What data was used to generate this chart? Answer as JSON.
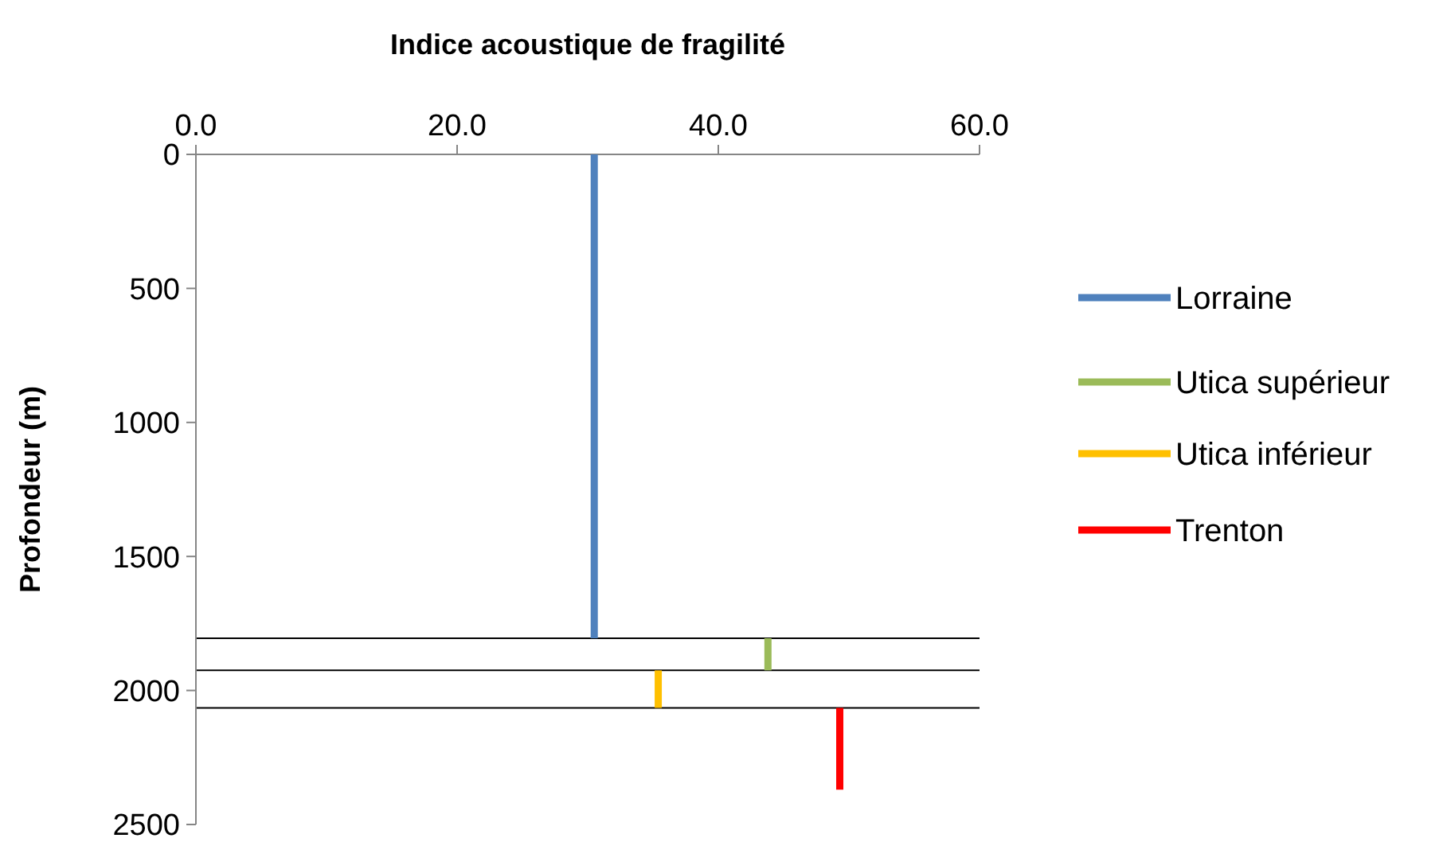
{
  "chart_data": {
    "type": "line",
    "xlabel": "Indice acoustique de fragilité",
    "ylabel": "Profondeur (m)",
    "xlim": [
      0,
      60
    ],
    "xticks": [
      {
        "value": 0,
        "label": "0.0"
      },
      {
        "value": 20,
        "label": "20.0"
      },
      {
        "value": 40,
        "label": "40.0"
      },
      {
        "value": 60,
        "label": "60.0"
      }
    ],
    "ylim": [
      2500,
      0
    ],
    "yticks": [
      0,
      500,
      1000,
      1500,
      2000,
      2500
    ],
    "grid": false,
    "legend": "right",
    "line_style": "solid",
    "series": [
      {
        "name": "Lorraine",
        "color": "#4f81bd",
        "x": [
          30.5,
          30.5
        ],
        "values": [
          0,
          1805
        ]
      },
      {
        "name": "Utica supérieur",
        "color": "#9bbb59",
        "x": [
          43.8,
          43.8
        ],
        "values": [
          1805,
          1925
        ]
      },
      {
        "name": "Utica inférieur",
        "color": "#ffc000",
        "x": [
          35.4,
          35.4
        ],
        "values": [
          1925,
          2065
        ]
      },
      {
        "name": "Trenton",
        "color": "#ff0000",
        "x": [
          49.3,
          49.3
        ],
        "values": [
          2065,
          2370
        ]
      }
    ],
    "ref_lines": [
      {
        "axis": "y",
        "value": 1805,
        "color": "#000000"
      },
      {
        "axis": "y",
        "value": 1925,
        "color": "#000000"
      },
      {
        "axis": "y",
        "value": 2065,
        "color": "#000000"
      }
    ]
  }
}
